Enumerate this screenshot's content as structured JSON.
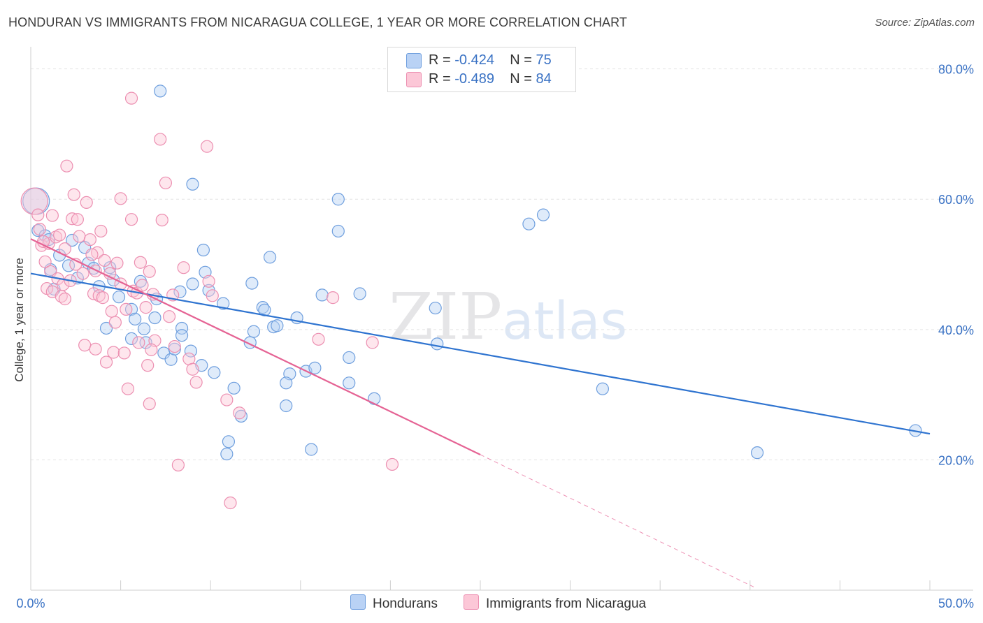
{
  "title": "HONDURAN VS IMMIGRANTS FROM NICARAGUA COLLEGE, 1 YEAR OR MORE CORRELATION CHART",
  "source": "Source: ZipAtlas.com",
  "watermark": {
    "part1": "ZIP",
    "part2": "atlas"
  },
  "legend": [
    {
      "swatch_color": "#b9d2f5",
      "r_label": "R = ",
      "r_value": "-0.424",
      "n_label": "N = ",
      "n_value": "75"
    },
    {
      "swatch_color": "#fcc7d7",
      "r_label": "R = ",
      "r_value": "-0.489",
      "n_label": "N = ",
      "n_value": "84"
    }
  ],
  "bottom_legend": [
    {
      "label": "Hondurans",
      "color": "#b9d2f5"
    },
    {
      "label": "Immigrants from Nicaragua",
      "color": "#fcc7d7"
    }
  ],
  "colors": {
    "blue_point_stroke": "#6f9fde",
    "blue_point_fill": "#b9d2f5",
    "blue_line": "#2f74d0",
    "pink_point_stroke": "#ec8fb1",
    "pink_point_fill": "#fcc7d7",
    "pink_line": "#e56394",
    "axis_label": "#3a72c4",
    "grid": "#e3e3e3"
  },
  "chart_data": {
    "type": "scatter",
    "title": "HONDURAN VS IMMIGRANTS FROM NICARAGUA COLLEGE, 1 YEAR OR MORE CORRELATION CHART",
    "xlabel": "",
    "ylabel": "College, 1 year or more",
    "xlim": [
      0,
      50
    ],
    "ylim": [
      0,
      82
    ],
    "x_tick_labels": [
      "0.0%",
      "50.0%"
    ],
    "y_tick_values": [
      20,
      40,
      60,
      80
    ],
    "y_tick_labels": [
      "20.0%",
      "40.0%",
      "60.0%",
      "80.0%"
    ],
    "grid": true,
    "legend_placement": "top-center",
    "series": [
      {
        "name": "Hondurans",
        "r": -0.424,
        "n": 75,
        "trend": {
          "x": [
            0,
            50
          ],
          "y": [
            48.6,
            24.0
          ],
          "dashed_extension": false
        },
        "points": [
          [
            0.3,
            59.7,
            "large"
          ],
          [
            0.4,
            55.2
          ],
          [
            0.8,
            54.4
          ],
          [
            1.0,
            53.8
          ],
          [
            1.1,
            49.2
          ],
          [
            1.6,
            51.4
          ],
          [
            2.1,
            49.8
          ],
          [
            2.3,
            53.7
          ],
          [
            2.6,
            47.9
          ],
          [
            3.0,
            52.6
          ],
          [
            3.2,
            50.2
          ],
          [
            3.5,
            49.4
          ],
          [
            4.4,
            49.5
          ],
          [
            4.6,
            47.6
          ],
          [
            4.2,
            40.2
          ],
          [
            5.6,
            43.1
          ],
          [
            5.8,
            41.6
          ],
          [
            5.6,
            38.6
          ],
          [
            6.1,
            47.4
          ],
          [
            6.3,
            40.1
          ],
          [
            6.9,
            41.8
          ],
          [
            7.0,
            44.7
          ],
          [
            7.4,
            36.4
          ],
          [
            7.8,
            35.4
          ],
          [
            8.0,
            37.0
          ],
          [
            8.3,
            45.8
          ],
          [
            8.4,
            40.2
          ],
          [
            8.4,
            39.1
          ],
          [
            9.0,
            62.3
          ],
          [
            9.0,
            47.0
          ],
          [
            9.5,
            34.5
          ],
          [
            9.6,
            52.2
          ],
          [
            9.7,
            48.8
          ],
          [
            9.9,
            46.0
          ],
          [
            10.2,
            33.4
          ],
          [
            10.7,
            44.0
          ],
          [
            11.3,
            31.0
          ],
          [
            11.0,
            22.8
          ],
          [
            10.9,
            20.9
          ],
          [
            11.7,
            26.7
          ],
          [
            12.3,
            47.1
          ],
          [
            12.9,
            43.4
          ],
          [
            12.4,
            39.7
          ],
          [
            13.3,
            51.1
          ],
          [
            13.0,
            43.0
          ],
          [
            13.5,
            40.4
          ],
          [
            13.7,
            40.6
          ],
          [
            14.2,
            28.3
          ],
          [
            14.4,
            33.2
          ],
          [
            14.2,
            31.8
          ],
          [
            14.8,
            41.8
          ],
          [
            15.3,
            33.6
          ],
          [
            15.6,
            21.6
          ],
          [
            15.8,
            34.1
          ],
          [
            16.2,
            45.3
          ],
          [
            17.1,
            55.1
          ],
          [
            17.1,
            60.0
          ],
          [
            17.7,
            35.7
          ],
          [
            17.7,
            31.8
          ],
          [
            18.3,
            45.5
          ],
          [
            19.1,
            29.4
          ],
          [
            22.5,
            43.3
          ],
          [
            22.6,
            37.8
          ],
          [
            27.7,
            56.2
          ],
          [
            28.5,
            57.6
          ],
          [
            31.8,
            30.9
          ],
          [
            40.4,
            21.1
          ],
          [
            49.2,
            24.5
          ],
          [
            7.2,
            76.6
          ],
          [
            1.3,
            46.2
          ],
          [
            3.8,
            46.6
          ],
          [
            4.9,
            45.0
          ],
          [
            6.4,
            38.0
          ],
          [
            8.9,
            36.7
          ],
          [
            12.2,
            38.0
          ]
        ]
      },
      {
        "name": "Immigrants from Nicaragua",
        "r": -0.489,
        "n": 84,
        "trend": {
          "x": [
            0,
            25
          ],
          "y": [
            53.9,
            20.8
          ],
          "dashed_extension": {
            "x": [
              25,
              40.2
            ],
            "y": [
              20.8,
              0.5
            ]
          }
        },
        "points": [
          [
            0.2,
            59.7,
            "large"
          ],
          [
            0.4,
            57.6
          ],
          [
            0.5,
            55.4
          ],
          [
            0.6,
            52.9
          ],
          [
            0.8,
            50.4
          ],
          [
            0.9,
            46.3
          ],
          [
            1.0,
            53.2
          ],
          [
            1.1,
            48.9
          ],
          [
            1.2,
            57.5
          ],
          [
            1.2,
            45.8
          ],
          [
            1.4,
            54.2
          ],
          [
            1.5,
            47.8
          ],
          [
            1.7,
            45.1
          ],
          [
            1.8,
            46.9
          ],
          [
            1.9,
            52.4
          ],
          [
            2.0,
            65.1
          ],
          [
            2.3,
            57.0
          ],
          [
            2.4,
            60.7
          ],
          [
            2.6,
            56.9
          ],
          [
            2.7,
            54.3
          ],
          [
            2.9,
            48.6
          ],
          [
            3.0,
            37.6
          ],
          [
            3.1,
            59.5
          ],
          [
            3.3,
            53.8
          ],
          [
            3.5,
            45.5
          ],
          [
            3.6,
            49.0
          ],
          [
            3.7,
            51.8
          ],
          [
            3.8,
            45.2
          ],
          [
            3.9,
            55.1
          ],
          [
            4.1,
            50.6
          ],
          [
            4.2,
            35.0
          ],
          [
            4.4,
            48.6
          ],
          [
            4.5,
            42.8
          ],
          [
            4.6,
            36.5
          ],
          [
            4.8,
            50.2
          ],
          [
            5.0,
            47.0
          ],
          [
            5.0,
            60.1
          ],
          [
            5.2,
            36.4
          ],
          [
            5.4,
            30.9
          ],
          [
            5.6,
            75.5
          ],
          [
            5.6,
            56.9
          ],
          [
            5.7,
            45.9
          ],
          [
            5.9,
            45.6
          ],
          [
            6.0,
            38.0
          ],
          [
            6.1,
            50.3
          ],
          [
            6.4,
            43.4
          ],
          [
            6.5,
            34.5
          ],
          [
            6.6,
            28.6
          ],
          [
            6.6,
            48.9
          ],
          [
            6.8,
            45.4
          ],
          [
            6.9,
            38.3
          ],
          [
            7.2,
            69.2
          ],
          [
            7.3,
            56.8
          ],
          [
            7.5,
            62.5
          ],
          [
            7.7,
            42.0
          ],
          [
            8.0,
            37.4
          ],
          [
            8.2,
            19.2
          ],
          [
            8.5,
            49.5
          ],
          [
            8.8,
            35.5
          ],
          [
            9.0,
            33.9
          ],
          [
            9.2,
            31.9
          ],
          [
            9.8,
            68.1
          ],
          [
            9.9,
            47.4
          ],
          [
            10.1,
            45.2
          ],
          [
            10.9,
            29.2
          ],
          [
            11.1,
            13.4
          ],
          [
            11.6,
            27.2
          ],
          [
            16.0,
            38.5
          ],
          [
            16.8,
            44.9
          ],
          [
            19.0,
            38.0
          ],
          [
            20.1,
            19.3
          ],
          [
            2.5,
            50.0
          ],
          [
            4.0,
            44.9
          ],
          [
            5.3,
            43.1
          ],
          [
            1.6,
            54.5
          ],
          [
            0.7,
            53.5
          ],
          [
            3.4,
            51.5
          ],
          [
            2.2,
            47.5
          ],
          [
            6.2,
            46.8
          ],
          [
            7.9,
            45.3
          ],
          [
            1.9,
            44.7
          ],
          [
            4.7,
            41.1
          ],
          [
            3.6,
            37.0
          ],
          [
            6.7,
            36.9
          ]
        ]
      }
    ]
  }
}
